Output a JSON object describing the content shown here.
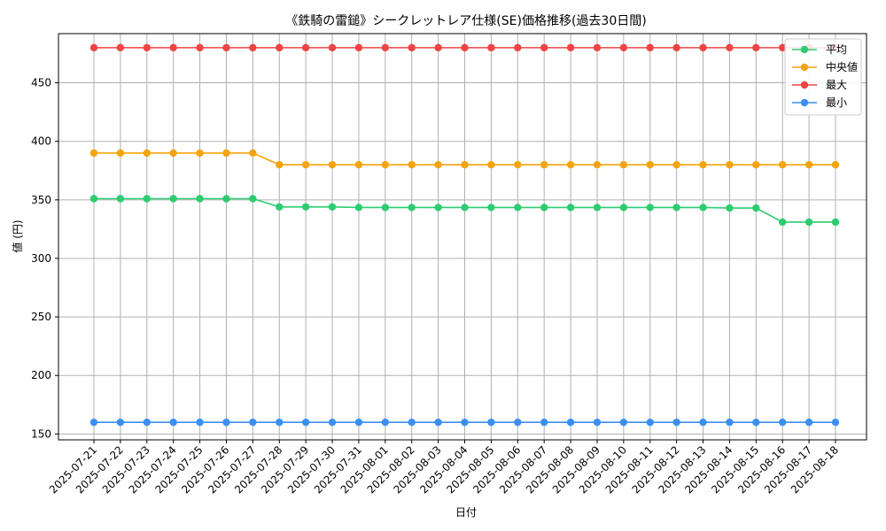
{
  "chart_data": {
    "type": "line",
    "title": "《鉄騎の雷鎚》シークレットレア仕様(SE)価格推移(過去30日間)",
    "xlabel": "日付",
    "ylabel": "値 (円)",
    "ylim": [
      145,
      492
    ],
    "yticks": [
      150,
      200,
      250,
      300,
      350,
      400,
      450
    ],
    "grid": true,
    "legend_position": "top-right",
    "categories": [
      "2025-07-21",
      "2025-07-22",
      "2025-07-23",
      "2025-07-24",
      "2025-07-25",
      "2025-07-26",
      "2025-07-27",
      "2025-07-28",
      "2025-07-29",
      "2025-07-30",
      "2025-07-31",
      "2025-08-01",
      "2025-08-02",
      "2025-08-03",
      "2025-08-04",
      "2025-08-05",
      "2025-08-06",
      "2025-08-07",
      "2025-08-08",
      "2025-08-09",
      "2025-08-10",
      "2025-08-11",
      "2025-08-12",
      "2025-08-13",
      "2025-08-14",
      "2025-08-15",
      "2025-08-16",
      "2025-08-17",
      "2025-08-18"
    ],
    "series": [
      {
        "name": "平均",
        "color": "#2ecc71",
        "values": [
          351,
          351,
          351,
          351,
          351,
          351,
          351,
          344,
          344,
          344,
          343.5,
          343.5,
          343.5,
          343.5,
          343.5,
          343.5,
          343.5,
          343.5,
          343.5,
          343.5,
          343.5,
          343.5,
          343.5,
          343.5,
          343,
          343,
          331,
          331,
          331
        ]
      },
      {
        "name": "中央値",
        "color": "#f5a30f",
        "values": [
          390,
          390,
          390,
          390,
          390,
          390,
          390,
          380,
          380,
          380,
          380,
          380,
          380,
          380,
          380,
          380,
          380,
          380,
          380,
          380,
          380,
          380,
          380,
          380,
          380,
          380,
          380,
          380,
          380
        ]
      },
      {
        "name": "最大",
        "color": "#ef4444",
        "values": [
          480,
          480,
          480,
          480,
          480,
          480,
          480,
          480,
          480,
          480,
          480,
          480,
          480,
          480,
          480,
          480,
          480,
          480,
          480,
          480,
          480,
          480,
          480,
          480,
          480,
          480,
          480,
          480,
          480
        ]
      },
      {
        "name": "最小",
        "color": "#3b8ff2",
        "values": [
          160,
          160,
          160,
          160,
          160,
          160,
          160,
          160,
          160,
          160,
          160,
          160,
          160,
          160,
          160,
          160,
          160,
          160,
          160,
          160,
          160,
          160,
          160,
          160,
          160,
          160,
          160,
          160,
          160
        ]
      }
    ]
  }
}
